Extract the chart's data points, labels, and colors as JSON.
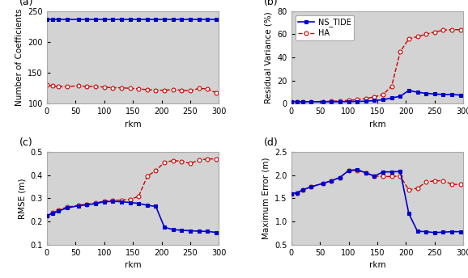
{
  "panel_a": {
    "title": "(a)",
    "ylabel": "Number of Coefficients",
    "xlabel": "rkm",
    "ylim": [
      100,
      250
    ],
    "yticks": [
      100,
      150,
      200,
      250
    ],
    "xlim": [
      0,
      300
    ],
    "xticks": [
      0,
      50,
      100,
      150,
      200,
      250,
      300
    ],
    "ns_tide_x": [
      0,
      10,
      20,
      35,
      55,
      70,
      85,
      100,
      115,
      130,
      145,
      160,
      175,
      190,
      205,
      220,
      235,
      250,
      265,
      280,
      295
    ],
    "ns_tide_y": [
      237,
      237,
      237,
      237,
      237,
      237,
      237,
      237,
      237,
      237,
      237,
      237,
      237,
      237,
      237,
      237,
      237,
      237,
      237,
      237,
      237
    ],
    "ha_x": [
      0,
      10,
      20,
      35,
      55,
      70,
      85,
      100,
      115,
      130,
      145,
      160,
      175,
      190,
      205,
      220,
      235,
      250,
      265,
      280,
      295
    ],
    "ha_y": [
      130,
      129,
      128,
      128,
      129,
      128,
      128,
      127,
      126,
      126,
      125,
      124,
      123,
      122,
      122,
      123,
      122,
      121,
      125,
      124,
      118
    ]
  },
  "panel_b": {
    "title": "(b)",
    "ylabel": "Residual Variance (%)",
    "xlabel": "rkm",
    "ylim": [
      0,
      80
    ],
    "yticks": [
      0,
      20,
      40,
      60,
      80
    ],
    "xlim": [
      0,
      300
    ],
    "xticks": [
      0,
      50,
      100,
      150,
      200,
      250,
      300
    ],
    "ns_tide_x": [
      0,
      10,
      20,
      35,
      55,
      70,
      85,
      100,
      115,
      130,
      145,
      160,
      175,
      190,
      205,
      220,
      235,
      250,
      265,
      280,
      295
    ],
    "ns_tide_y": [
      2.0,
      1.9,
      1.8,
      1.8,
      1.8,
      1.7,
      1.8,
      1.9,
      2.0,
      2.2,
      2.8,
      3.5,
      5.0,
      6.5,
      11.5,
      10.0,
      9.0,
      8.5,
      8.0,
      8.0,
      7.5
    ],
    "ha_x": [
      0,
      10,
      20,
      35,
      55,
      70,
      85,
      100,
      115,
      130,
      145,
      160,
      175,
      190,
      205,
      220,
      235,
      250,
      265,
      280,
      295
    ],
    "ha_y": [
      2.0,
      1.9,
      1.8,
      1.8,
      2.0,
      2.2,
      2.5,
      3.0,
      3.5,
      4.5,
      6.0,
      8.0,
      15.0,
      45.0,
      56.0,
      58.0,
      60.0,
      62.0,
      63.5,
      64.0,
      64.0
    ]
  },
  "panel_c": {
    "title": "(c)",
    "ylabel": "RMSE (m)",
    "xlabel": "rkm",
    "ylim": [
      0.1,
      0.5
    ],
    "yticks": [
      0.1,
      0.2,
      0.3,
      0.4,
      0.5
    ],
    "xlim": [
      0,
      300
    ],
    "xticks": [
      0,
      50,
      100,
      150,
      200,
      250,
      300
    ],
    "ns_tide_x": [
      0,
      10,
      20,
      35,
      55,
      70,
      85,
      100,
      115,
      130,
      145,
      160,
      175,
      190,
      205,
      220,
      235,
      250,
      265,
      280,
      295
    ],
    "ns_tide_y": [
      0.225,
      0.235,
      0.245,
      0.258,
      0.268,
      0.272,
      0.277,
      0.285,
      0.287,
      0.285,
      0.282,
      0.278,
      0.27,
      0.265,
      0.175,
      0.165,
      0.162,
      0.16,
      0.158,
      0.157,
      0.153
    ],
    "ha_x": [
      0,
      10,
      20,
      35,
      55,
      70,
      85,
      100,
      115,
      130,
      145,
      160,
      175,
      190,
      205,
      220,
      235,
      250,
      265,
      280,
      295
    ],
    "ha_y": [
      0.225,
      0.237,
      0.25,
      0.262,
      0.27,
      0.275,
      0.28,
      0.288,
      0.292,
      0.292,
      0.296,
      0.308,
      0.395,
      0.42,
      0.455,
      0.463,
      0.46,
      0.45,
      0.465,
      0.47,
      0.47
    ]
  },
  "panel_d": {
    "title": "(d)",
    "ylabel": "Maximum Error (m)",
    "xlabel": "rkm",
    "ylim": [
      0.5,
      2.5
    ],
    "yticks": [
      0.5,
      1.0,
      1.5,
      2.0,
      2.5
    ],
    "xlim": [
      0,
      300
    ],
    "xticks": [
      0,
      50,
      100,
      150,
      200,
      250,
      300
    ],
    "ns_tide_x": [
      0,
      10,
      20,
      35,
      55,
      70,
      85,
      100,
      115,
      130,
      145,
      160,
      175,
      190,
      205,
      220,
      235,
      250,
      265,
      280,
      295
    ],
    "ns_tide_y": [
      1.6,
      1.62,
      1.68,
      1.75,
      1.82,
      1.88,
      1.95,
      2.1,
      2.12,
      2.05,
      1.98,
      2.07,
      2.07,
      2.08,
      1.17,
      0.79,
      0.78,
      0.76,
      0.77,
      0.78,
      0.78
    ],
    "ha_x": [
      0,
      10,
      20,
      35,
      55,
      70,
      85,
      100,
      115,
      130,
      145,
      160,
      175,
      190,
      205,
      220,
      235,
      250,
      265,
      280,
      295
    ],
    "ha_y": [
      1.6,
      1.62,
      1.68,
      1.75,
      1.82,
      1.88,
      1.95,
      2.1,
      2.1,
      2.05,
      1.98,
      1.97,
      1.97,
      1.98,
      1.68,
      1.72,
      1.85,
      1.88,
      1.88,
      1.8,
      1.8
    ]
  },
  "ns_tide_color": "#0000CD",
  "ha_color": "#CC0000",
  "background_color": "#d3d3d3",
  "legend_labels": [
    "NS_TIDE",
    "HA"
  ]
}
